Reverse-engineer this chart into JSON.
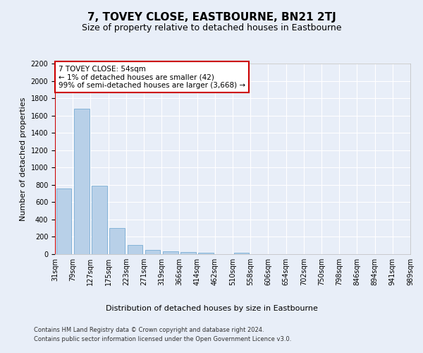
{
  "title": "7, TOVEY CLOSE, EASTBOURNE, BN21 2TJ",
  "subtitle": "Size of property relative to detached houses in Eastbourne",
  "xlabel": "Distribution of detached houses by size in Eastbourne",
  "ylabel": "Number of detached properties",
  "bar_values": [
    760,
    1680,
    790,
    300,
    110,
    45,
    35,
    25,
    20,
    0,
    20,
    0,
    0,
    0,
    0,
    0,
    0,
    0,
    0,
    0
  ],
  "x_labels": [
    "31sqm",
    "79sqm",
    "127sqm",
    "175sqm",
    "223sqm",
    "271sqm",
    "319sqm",
    "366sqm",
    "414sqm",
    "462sqm",
    "510sqm",
    "558sqm",
    "606sqm",
    "654sqm",
    "702sqm",
    "750sqm",
    "798sqm",
    "846sqm",
    "894sqm",
    "941sqm",
    "989sqm"
  ],
  "bar_color": "#b8d0e8",
  "bar_edge_color": "#7aadd4",
  "vline_color": "#cc0000",
  "annotation_text": "7 TOVEY CLOSE: 54sqm\n← 1% of detached houses are smaller (42)\n99% of semi-detached houses are larger (3,668) →",
  "annotation_box_color": "#cc0000",
  "ylim": [
    0,
    2200
  ],
  "yticks": [
    0,
    200,
    400,
    600,
    800,
    1000,
    1200,
    1400,
    1600,
    1800,
    2000,
    2200
  ],
  "footer_line1": "Contains HM Land Registry data © Crown copyright and database right 2024.",
  "footer_line2": "Contains public sector information licensed under the Open Government Licence v3.0.",
  "background_color": "#e8eef8",
  "grid_color": "#ffffff",
  "title_fontsize": 11,
  "subtitle_fontsize": 9,
  "xlabel_fontsize": 8,
  "ylabel_fontsize": 8,
  "tick_fontsize": 7,
  "footer_fontsize": 6
}
